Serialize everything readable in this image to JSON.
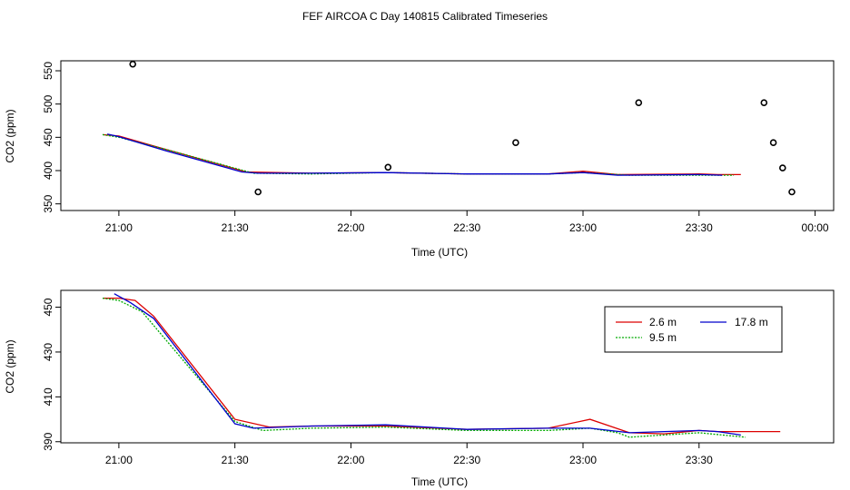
{
  "title": "FEF AIRCOA C  Day 140815  Calibrated Timeseries",
  "colors": {
    "s2_6": "#dd0000",
    "s9_5": "#00aa00",
    "s17_8": "#0000cc",
    "axis": "#000000",
    "points": "#000000"
  },
  "chart_data": [
    {
      "type": "line",
      "xlabel": "Time (UTC)",
      "ylabel": "CO2 (ppm)",
      "xlim": [
        20.75,
        24.08
      ],
      "ylim": [
        340,
        565
      ],
      "x_ticks": [
        21,
        21.5,
        22,
        22.5,
        23,
        23.5,
        24
      ],
      "x_tick_labels": [
        "21:00",
        "21:30",
        "22:00",
        "22:30",
        "23:00",
        "23:30",
        "00:00"
      ],
      "y_ticks": [
        350,
        400,
        450,
        500,
        550
      ],
      "y_tick_labels": [
        "350",
        "400",
        "450",
        "500",
        "550"
      ],
      "series": [
        {
          "color_key": "s2_6",
          "dash": false,
          "points": [
            [
              20.93,
              454
            ],
            [
              21.0,
              452
            ],
            [
              21.2,
              432
            ],
            [
              21.55,
              398
            ],
            [
              21.83,
              396
            ],
            [
              22.15,
              397
            ],
            [
              22.5,
              395
            ],
            [
              22.85,
              395
            ],
            [
              23.0,
              399
            ],
            [
              23.15,
              394
            ],
            [
              23.5,
              395
            ],
            [
              23.58,
              394
            ],
            [
              23.68,
              394
            ]
          ]
        },
        {
          "color_key": "s9_5",
          "dash": true,
          "points": [
            [
              20.93,
              454
            ],
            [
              21.0,
              450
            ],
            [
              21.2,
              432
            ],
            [
              21.58,
              396
            ],
            [
              21.83,
              395
            ],
            [
              22.15,
              397
            ],
            [
              22.5,
              395
            ],
            [
              22.85,
              395
            ],
            [
              23.0,
              397
            ],
            [
              23.2,
              393
            ],
            [
              23.5,
              393
            ],
            [
              23.65,
              393
            ]
          ]
        },
        {
          "color_key": "s17_8",
          "dash": false,
          "points": [
            [
              20.95,
              455
            ],
            [
              21.0,
              451
            ],
            [
              21.2,
              430
            ],
            [
              21.53,
              398
            ],
            [
              21.6,
              396
            ],
            [
              21.83,
              396
            ],
            [
              22.15,
              397
            ],
            [
              22.5,
              395
            ],
            [
              22.85,
              395
            ],
            [
              23.0,
              397
            ],
            [
              23.15,
              393
            ],
            [
              23.5,
              394
            ],
            [
              23.6,
              393
            ]
          ]
        }
      ],
      "scatter": [
        [
          21.06,
          560
        ],
        [
          21.6,
          368
        ],
        [
          22.16,
          405
        ],
        [
          22.71,
          442
        ],
        [
          23.24,
          502
        ],
        [
          23.78,
          502
        ],
        [
          23.82,
          442
        ],
        [
          23.86,
          404
        ],
        [
          23.9,
          368
        ]
      ]
    },
    {
      "type": "line",
      "xlabel": "Time (UTC)",
      "ylabel": "CO2 (ppm)",
      "xlim": [
        20.75,
        24.08
      ],
      "ylim": [
        389.5,
        457.5
      ],
      "x_ticks": [
        21,
        21.5,
        22,
        22.5,
        23,
        23.5
      ],
      "x_tick_labels": [
        "21:00",
        "21:30",
        "22:00",
        "22:30",
        "23:00",
        "23:30"
      ],
      "y_ticks": [
        390,
        410,
        430,
        450
      ],
      "y_tick_labels": [
        "390",
        "410",
        "430",
        "450"
      ],
      "legend_position": "top-right",
      "legend": [
        {
          "label": "2.6 m",
          "color_key": "s2_6",
          "dash": false
        },
        {
          "label": "17.8 m",
          "color_key": "s17_8",
          "dash": false
        },
        {
          "label": "9.5 m",
          "color_key": "s9_5",
          "dash": true
        }
      ],
      "series": [
        {
          "color_key": "s2_6",
          "dash": false,
          "points": [
            [
              20.93,
              454
            ],
            [
              21.0,
              454
            ],
            [
              21.07,
              453
            ],
            [
              21.15,
              446
            ],
            [
              21.5,
              400
            ],
            [
              21.65,
              396.5
            ],
            [
              21.83,
              397
            ],
            [
              22.15,
              397
            ],
            [
              22.5,
              395.5
            ],
            [
              22.85,
              396
            ],
            [
              23.03,
              400
            ],
            [
              23.2,
              394
            ],
            [
              23.35,
              393.5
            ],
            [
              23.5,
              395
            ],
            [
              23.58,
              394.5
            ],
            [
              23.75,
              394.5
            ],
            [
              23.85,
              394.5
            ]
          ]
        },
        {
          "color_key": "s9_5",
          "dash": true,
          "points": [
            [
              20.93,
              454
            ],
            [
              21.0,
              453
            ],
            [
              21.1,
              448
            ],
            [
              21.5,
              399
            ],
            [
              21.62,
              395
            ],
            [
              21.83,
              396
            ],
            [
              22.15,
              396.5
            ],
            [
              22.5,
              395
            ],
            [
              22.85,
              395
            ],
            [
              23.03,
              396
            ],
            [
              23.15,
              394
            ],
            [
              23.2,
              392
            ],
            [
              23.5,
              394
            ],
            [
              23.65,
              392.5
            ],
            [
              23.7,
              392
            ]
          ]
        },
        {
          "color_key": "s17_8",
          "dash": false,
          "points": [
            [
              20.98,
              456
            ],
            [
              21.05,
              452
            ],
            [
              21.15,
              445
            ],
            [
              21.5,
              398
            ],
            [
              21.58,
              396
            ],
            [
              21.83,
              397
            ],
            [
              22.15,
              397.5
            ],
            [
              22.5,
              395.5
            ],
            [
              22.85,
              396
            ],
            [
              23.03,
              396
            ],
            [
              23.2,
              394
            ],
            [
              23.5,
              395
            ],
            [
              23.58,
              394.5
            ],
            [
              23.68,
              393
            ]
          ]
        }
      ]
    }
  ]
}
